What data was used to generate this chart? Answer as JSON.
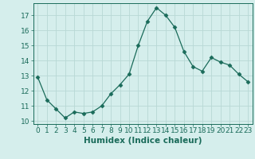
{
  "x": [
    0,
    1,
    2,
    3,
    4,
    5,
    6,
    7,
    8,
    9,
    10,
    11,
    12,
    13,
    14,
    15,
    16,
    17,
    18,
    19,
    20,
    21,
    22,
    23
  ],
  "y": [
    12.9,
    11.4,
    10.8,
    10.2,
    10.6,
    10.5,
    10.6,
    11.0,
    11.8,
    12.4,
    13.1,
    15.0,
    16.6,
    17.5,
    17.0,
    16.2,
    14.6,
    13.6,
    13.3,
    14.2,
    13.9,
    13.7,
    13.1,
    12.6
  ],
  "line_color": "#1a6b5a",
  "marker": "D",
  "marker_size": 2.5,
  "bg_color": "#d5eeec",
  "grid_color": "#b8d8d5",
  "xlabel": "Humidex (Indice chaleur)",
  "xlabel_fontsize": 7.5,
  "tick_fontsize": 6.5,
  "ylim": [
    9.8,
    17.8
  ],
  "xlim": [
    -0.5,
    23.5
  ],
  "yticks": [
    10,
    11,
    12,
    13,
    14,
    15,
    16,
    17
  ],
  "xticks": [
    0,
    1,
    2,
    3,
    4,
    5,
    6,
    7,
    8,
    9,
    10,
    11,
    12,
    13,
    14,
    15,
    16,
    17,
    18,
    19,
    20,
    21,
    22,
    23
  ]
}
